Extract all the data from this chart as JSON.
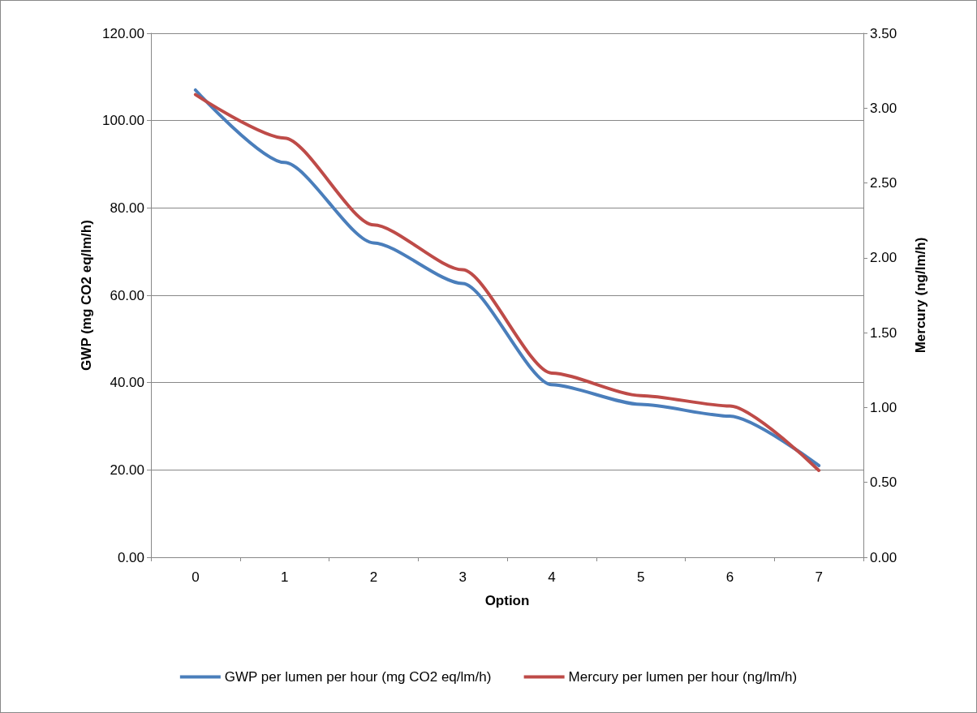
{
  "chart_data": {
    "type": "line",
    "xlabel": "Option",
    "ylabel": "GWP (mg CO2 eq/lm/h)",
    "y2label": "Mercury (ng/lm/h)",
    "categories": [
      "0",
      "1",
      "2",
      "3",
      "4",
      "5",
      "6",
      "7"
    ],
    "series": [
      {
        "name": "GWP per lumen per hour (mg CO2 eq/lm/h)",
        "color": "#4a7ebb",
        "values": [
          107,
          90.4,
          72,
          62.7,
          39.5,
          35,
          32.3,
          21
        ]
      },
      {
        "name": "Mercury per lumen per hour (ng/lm/h)",
        "color": "#be4b48",
        "axis": "y2",
        "values": [
          3.09,
          2.8,
          2.22,
          1.92,
          1.23,
          1.08,
          1.01,
          0.58
        ]
      }
    ],
    "ylim": [
      0,
      120
    ],
    "yticks": [
      {
        "value": 0,
        "label": "0.00"
      },
      {
        "value": 20,
        "label": "20.00"
      },
      {
        "value": 40,
        "label": "40.00"
      },
      {
        "value": 60,
        "label": "60.00"
      },
      {
        "value": 80,
        "label": "80.00"
      },
      {
        "value": 100,
        "label": "100.00"
      },
      {
        "value": 120,
        "label": "120.00"
      }
    ],
    "y2lim": [
      0,
      3.5
    ],
    "y2ticks": [
      {
        "value": 0,
        "label": "0.00"
      },
      {
        "value": 0.5,
        "label": "0.50"
      },
      {
        "value": 1,
        "label": "1.00"
      },
      {
        "value": 1.5,
        "label": "1.50"
      },
      {
        "value": 2,
        "label": "2.00"
      },
      {
        "value": 2.5,
        "label": "2.50"
      },
      {
        "value": 3,
        "label": "3.00"
      },
      {
        "value": 3.5,
        "label": "3.50"
      }
    ],
    "grid": "y",
    "legend": "bottom",
    "marker": "none",
    "line_style": "solid"
  }
}
